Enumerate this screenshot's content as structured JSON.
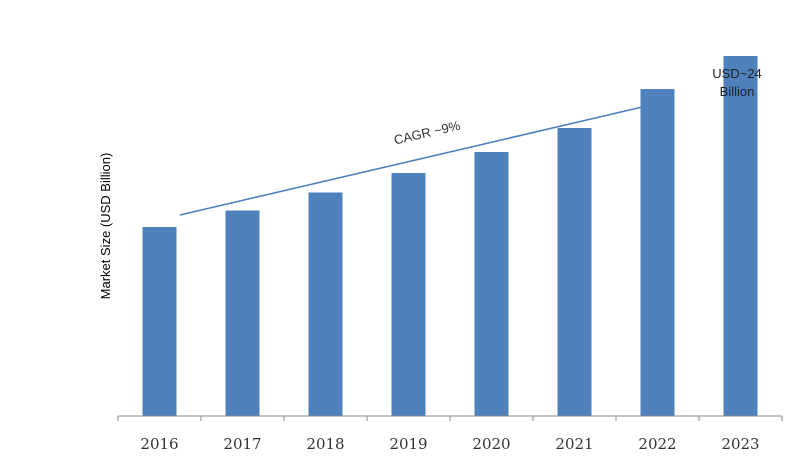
{
  "chart_data": {
    "type": "bar",
    "categories": [
      "2016",
      "2017",
      "2018",
      "2019",
      "2020",
      "2021",
      "2022",
      "2023"
    ],
    "values": [
      12.6,
      13.7,
      14.9,
      16.2,
      17.6,
      19.2,
      21.8,
      24.0
    ],
    "ylabel": "Market Size (USD Billion)",
    "xlabel": "",
    "ylim": [
      0,
      26
    ],
    "grid": false,
    "bar_color": "#4F81BD",
    "annotations": {
      "last_bar_line1": "USD~24",
      "last_bar_line2": "Billion",
      "cagr": "CAGR ~9%"
    }
  }
}
